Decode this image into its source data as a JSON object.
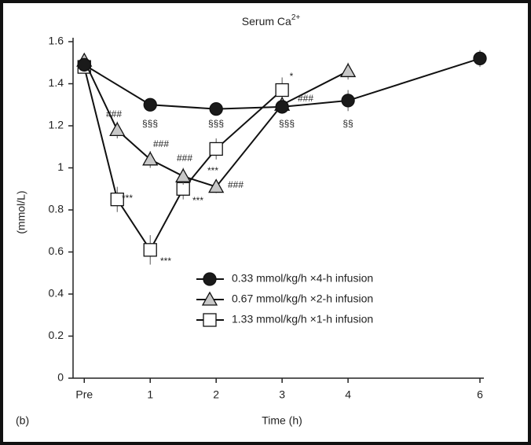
{
  "chart_data": {
    "type": "line",
    "title": "Serum Ca",
    "title_superscript": "2+",
    "panel_label": "(b)",
    "x_label": "Time (h)",
    "y_label": "(mmol/L)",
    "xlim": [
      -0.17,
      6
    ],
    "ylim": [
      0,
      1.6
    ],
    "xticks": [
      {
        "value": 0,
        "label": "Pre"
      },
      1,
      2,
      3,
      4,
      6
    ],
    "yticks": [
      0,
      0.2,
      0.4,
      0.6,
      0.8,
      1,
      1.2,
      1.4,
      1.6
    ],
    "legend": "center",
    "series": [
      {
        "name": "0.33 mmol/kg/h ×4-h infusion",
        "color": "#1a1a1a",
        "marker": "circle",
        "x": [
          0,
          1,
          2,
          3,
          4,
          6
        ],
        "values": [
          1.49,
          1.3,
          1.28,
          1.29,
          1.32,
          1.52
        ],
        "errors": [
          0.02,
          0.02,
          0.02,
          0.03,
          0.05,
          0.04
        ]
      },
      {
        "name": "0.67 mmol/kg/h ×2-h infusion",
        "color": "#c8c8c8",
        "marker": "triangle",
        "x": [
          0,
          0.5,
          1,
          1.5,
          2,
          3,
          4
        ],
        "values": [
          1.51,
          1.18,
          1.04,
          0.96,
          0.91,
          1.3,
          1.46
        ],
        "errors": [
          0.02,
          0.04,
          0.04,
          0.04,
          0.03,
          0.03,
          0.04
        ]
      },
      {
        "name": "1.33 mmol/kg/h ×1-h infusion",
        "color": "#ffffff",
        "marker": "square",
        "x": [
          0,
          0.5,
          1,
          1.5,
          2,
          3
        ],
        "values": [
          1.48,
          0.85,
          0.61,
          0.9,
          1.09,
          1.37
        ],
        "errors": [
          0.02,
          0.06,
          0.07,
          0.05,
          0.05,
          0.06
        ]
      }
    ],
    "annotations": [
      "###",
      "§§§",
      "###",
      "***",
      "###",
      "***",
      "***",
      "###",
      "§§§",
      "***",
      "*",
      "###",
      "§§§",
      "§§"
    ]
  }
}
